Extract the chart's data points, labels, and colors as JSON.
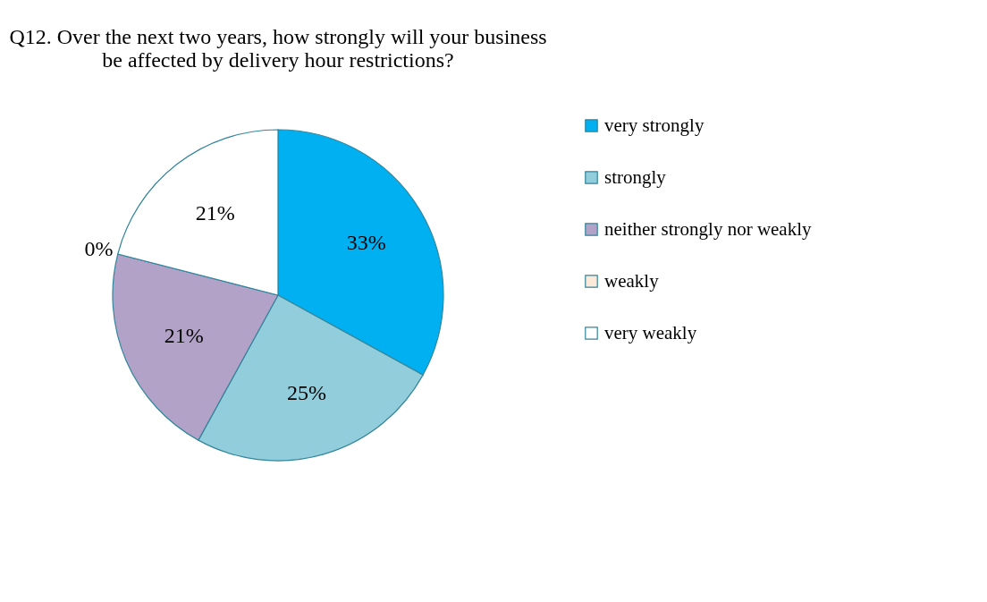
{
  "chart_data": {
    "type": "pie",
    "title": "Q12. Over the next two years, how strongly will your business be affected by delivery hour restrictions?",
    "categories": [
      "very strongly",
      "strongly",
      "neither strongly nor weakly",
      "weakly",
      "very weakly"
    ],
    "values": [
      33,
      25,
      21,
      0,
      21
    ],
    "colors": [
      "#00b0f0",
      "#92cddc",
      "#b3a2c7",
      "#fde9d9",
      "#ffffff"
    ],
    "value_labels": [
      "33%",
      "25%",
      "21%",
      "0%",
      "21%"
    ],
    "legend": "right"
  }
}
